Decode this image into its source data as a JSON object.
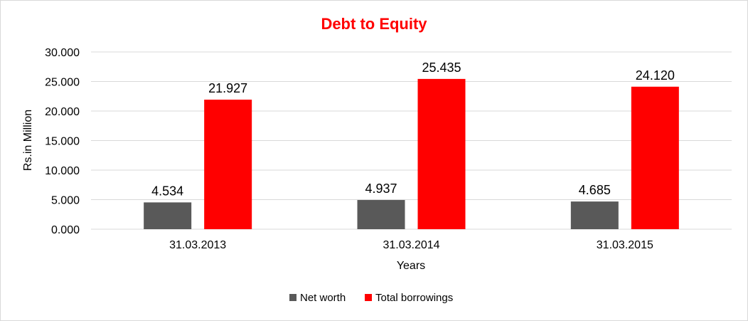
{
  "chart_data": {
    "type": "bar",
    "title": "Debt to Equity",
    "xlabel": "Years",
    "ylabel": "Rs.in Million",
    "categories": [
      "31.03.2013",
      "31.03.2014",
      "31.03.2015"
    ],
    "series": [
      {
        "name": "Net worth",
        "values": [
          4.534,
          4.937,
          4.685
        ],
        "labels": [
          "4.534",
          "4.937",
          "4.685"
        ],
        "color": "#595959"
      },
      {
        "name": "Total borrowings",
        "values": [
          21.927,
          25.435,
          24.12
        ],
        "labels": [
          "21.927",
          "25.435",
          "24.120"
        ],
        "color": "#ff0000"
      }
    ],
    "ylim": [
      0,
      30
    ],
    "yticks": [
      0,
      5,
      10,
      15,
      20,
      25,
      30
    ],
    "ytick_labels": [
      "0.000",
      "5.000",
      "10.000",
      "15.000",
      "20.000",
      "25.000",
      "30.000"
    ],
    "grid": true,
    "legend_position": "bottom",
    "title_color": "#ff0000"
  }
}
